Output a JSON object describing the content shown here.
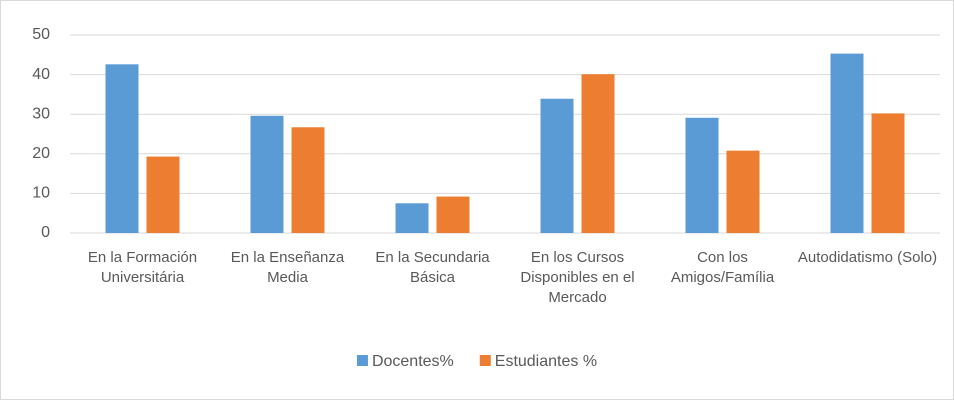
{
  "chart_data": {
    "type": "bar",
    "categories": [
      "En la Formación Universitária",
      "En la Enseñanza Media",
      "En la Secundaria Básica",
      "En los Cursos Disponibles en el Mercado",
      "Con los Amigos/Família",
      "Autodidatismo (Solo)"
    ],
    "series": [
      {
        "name": "Docentes%",
        "color": "#5b9bd5",
        "values": [
          42.6,
          29.6,
          7.5,
          33.9,
          29.1,
          45.3
        ]
      },
      {
        "name": "Estudiantes %",
        "color": "#ed7d31",
        "values": [
          19.3,
          26.7,
          9.2,
          40.1,
          20.8,
          30.2
        ]
      }
    ],
    "ylim": [
      0,
      50
    ],
    "yticks": [
      0,
      10,
      20,
      30,
      40,
      50
    ],
    "grid": true,
    "legend": "bottom"
  }
}
